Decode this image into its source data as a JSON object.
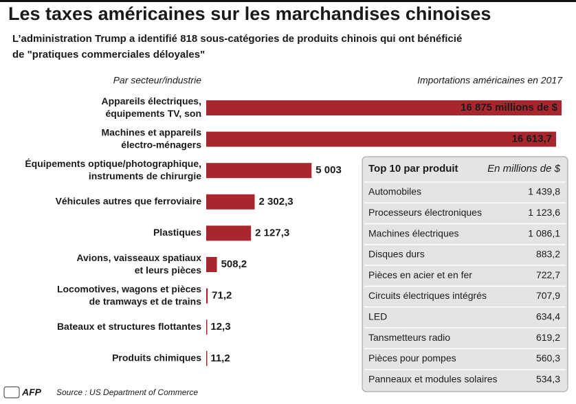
{
  "chart_data": {
    "type": "bar",
    "orientation": "horizontal",
    "title": "Les taxes américaines sur les marchandises chinoises",
    "subtitle": "L’administration Trump a identifié 818 sous-catégories de produits chinois qui ont bénéficié\nde \"pratiques commerciales déloyales\"",
    "category_header": "Par secteur/industrie",
    "value_header": "Importations américaines en 2017",
    "categories": [
      "Appareils électriques,\néquipements TV, son",
      "Machines et appareils\nélectro-ménagers",
      "Équipements optique/photographique,\ninstruments de chirurgie",
      "Véhicules autres que ferroviaire",
      "Plastiques",
      "Avions, vaisseaux spatiaux\net leurs pièces",
      "Locomotives, wagons et pièces\nde tramways et de trains",
      "Bateaux et structures flottantes",
      "Produits chimiques"
    ],
    "values": [
      16875,
      16613.7,
      5003,
      2302.3,
      2127.3,
      508.2,
      71.2,
      12.3,
      11.2
    ],
    "value_labels": [
      "16 875 millions de $",
      "16 613,7",
      "5 003",
      "2 302,3",
      "2 127,3",
      "508,2",
      "71,2",
      "12,3",
      "11,2"
    ],
    "color": "#a8272f"
  },
  "inset": {
    "title": "Top 10 par produit",
    "unit": "En millions de $",
    "rows": [
      [
        "Automobiles",
        "1 439,8"
      ],
      [
        "Processeurs électroniques",
        "1 123,6"
      ],
      [
        "Machines électriques",
        "1 086,1"
      ],
      [
        "Disques durs",
        "883,2"
      ],
      [
        "Pièces en acier et en fer",
        "722,7"
      ],
      [
        "Circuits électriques intégrés",
        "707,9"
      ],
      [
        "LED",
        "634,4"
      ],
      [
        "Tansmetteurs radio",
        "619,2"
      ],
      [
        "Pièces pour pompes",
        "560,3"
      ],
      [
        "Panneaux et modules solaires",
        "534,3"
      ]
    ]
  },
  "footer": {
    "logo": "AFP",
    "source": "Source : US Department of Commerce"
  }
}
